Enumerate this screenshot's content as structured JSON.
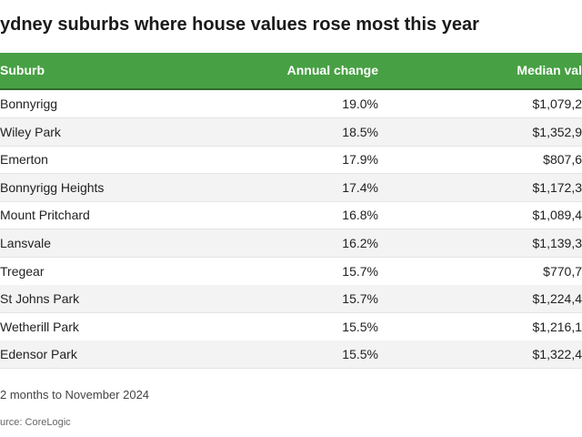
{
  "header": {
    "title": "ydney suburbs where house values rose most this year"
  },
  "table": {
    "columns": [
      "Suburb",
      "Annual change",
      "Median val"
    ],
    "rows": [
      [
        "Bonnyrigg",
        "19.0%",
        "$1,079,2"
      ],
      [
        "Wiley Park",
        "18.5%",
        "$1,352,9"
      ],
      [
        "Emerton",
        "17.9%",
        "$807,6"
      ],
      [
        "Bonnyrigg Heights",
        "17.4%",
        "$1,172,3"
      ],
      [
        "Mount Pritchard",
        "16.8%",
        "$1,089,4"
      ],
      [
        "Lansvale",
        "16.2%",
        "$1,139,3"
      ],
      [
        "Tregear",
        "15.7%",
        "$770,7"
      ],
      [
        "St Johns Park",
        "15.7%",
        "$1,224,4"
      ],
      [
        "Wetherill Park",
        "15.5%",
        "$1,216,1"
      ],
      [
        "Edensor Park",
        "15.5%",
        "$1,322,4"
      ]
    ]
  },
  "footer": {
    "note": "2 months to November 2024",
    "source": "urce: CoreLogic"
  }
}
